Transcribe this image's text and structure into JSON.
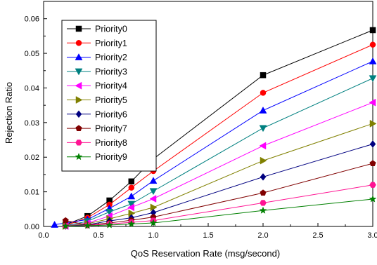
{
  "chart_data": {
    "type": "line",
    "xlabel": "QoS Reservation Rate (msg/second)",
    "ylabel": "Rejection Ratio",
    "xlim": [
      0.0,
      3.0
    ],
    "ylim": [
      0.0,
      0.065
    ],
    "xticks": [
      "0.0",
      "0.5",
      "1.0",
      "1.5",
      "2.0",
      "2.5",
      "3.0"
    ],
    "yticks": [
      "0.00",
      "0.01",
      "0.02",
      "0.03",
      "0.04",
      "0.05",
      "0.06"
    ],
    "grid": false,
    "legend_position": "top-left",
    "series": [
      {
        "name": "Priority0",
        "color": "#000000",
        "marker": "square",
        "x": [
          0.2,
          0.4,
          0.6,
          0.8,
          1.0,
          2.0,
          3.0
        ],
        "y": [
          0.0005,
          0.003,
          0.0075,
          0.013,
          0.0195,
          0.0437,
          0.0567
        ]
      },
      {
        "name": "Priority1",
        "color": "#ff0000",
        "marker": "circle",
        "x": [
          0.2,
          0.4,
          0.6,
          0.8,
          1.0,
          2.0,
          3.0
        ],
        "y": [
          0.0003,
          0.0025,
          0.0063,
          0.0112,
          0.016,
          0.0386,
          0.0525
        ]
      },
      {
        "name": "Priority2",
        "color": "#0000ff",
        "marker": "triangle-up",
        "x": [
          0.1,
          0.4,
          0.6,
          0.8,
          1.0,
          2.0,
          3.0
        ],
        "y": [
          0.0005,
          0.002,
          0.0052,
          0.0087,
          0.0132,
          0.0335,
          0.0477
        ]
      },
      {
        "name": "Priority3",
        "color": "#008080",
        "marker": "triangle-down",
        "x": [
          0.2,
          0.4,
          0.6,
          0.8,
          1.0,
          2.0,
          3.0
        ],
        "y": [
          0.0002,
          0.0015,
          0.0042,
          0.0065,
          0.0102,
          0.0284,
          0.0428
        ]
      },
      {
        "name": "Priority4",
        "color": "#ff00ff",
        "marker": "triangle-left",
        "x": [
          0.2,
          0.4,
          0.6,
          0.8,
          1.0,
          2.0,
          3.0
        ],
        "y": [
          0.0001,
          0.001,
          0.003,
          0.0055,
          0.008,
          0.0233,
          0.0358
        ]
      },
      {
        "name": "Priority5",
        "color": "#808000",
        "marker": "triangle-right",
        "x": [
          0.2,
          0.4,
          0.6,
          0.8,
          1.0,
          2.0,
          3.0
        ],
        "y": [
          0.0001,
          0.0008,
          0.0022,
          0.0038,
          0.0055,
          0.019,
          0.0297
        ]
      },
      {
        "name": "Priority6",
        "color": "#000080",
        "marker": "diamond",
        "x": [
          0.2,
          0.4,
          0.6,
          0.8,
          1.0,
          2.0,
          3.0
        ],
        "y": [
          0.0001,
          0.0005,
          0.0016,
          0.0025,
          0.004,
          0.0143,
          0.0238
        ]
      },
      {
        "name": "Priority7",
        "color": "#800000",
        "marker": "pentagon",
        "x": [
          0.2,
          0.4,
          0.6,
          0.8,
          1.0,
          2.0,
          3.0
        ],
        "y": [
          0.0017,
          0.0004,
          0.001,
          0.0018,
          0.0027,
          0.0097,
          0.0182
        ]
      },
      {
        "name": "Priority8",
        "color": "#ff1493",
        "marker": "hexagon",
        "x": [
          0.2,
          0.4,
          0.6,
          0.8,
          1.0,
          2.0,
          3.0
        ],
        "y": [
          0.0001,
          0.0003,
          0.0007,
          0.0012,
          0.0017,
          0.0068,
          0.012
        ]
      },
      {
        "name": "Priority9",
        "color": "#008000",
        "marker": "star",
        "x": [
          0.2,
          0.4,
          0.6,
          0.8,
          1.0,
          2.0,
          3.0
        ],
        "y": [
          0.0001,
          0.0002,
          0.0004,
          0.0007,
          0.001,
          0.0046,
          0.0079
        ]
      }
    ]
  }
}
